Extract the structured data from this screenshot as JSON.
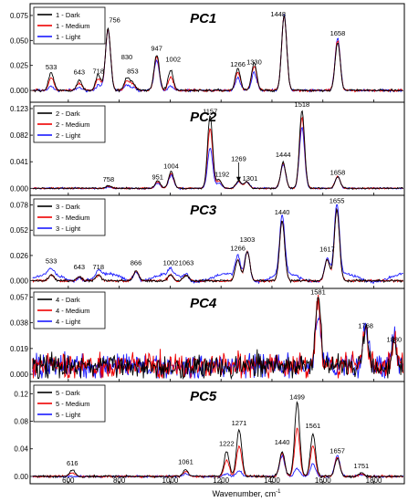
{
  "chart_data": {
    "type": "line",
    "xlabel": "Wavenumber, cm",
    "xlabel_sup": "-1",
    "xlim": [
      450,
      1920
    ],
    "xticks": [
      600,
      800,
      1000,
      1200,
      1400,
      1600,
      1800
    ],
    "series_colors": [
      "#000000",
      "#ee0000",
      "#1a1aff"
    ],
    "panels": [
      {
        "title": "PC1",
        "ylim": [
          -0.01,
          0.085
        ],
        "yticks": [
          "0.000",
          "0.025",
          "0.050",
          "0.075"
        ],
        "ytick_values": [
          0,
          0.025,
          0.05,
          0.075
        ],
        "legend": [
          "1 - Dark",
          "1 - Medium",
          "1 - Light"
        ],
        "peaks": [
          [
            533,
            0.018,
            0.004
          ],
          [
            643,
            0.01,
            0.003
          ],
          [
            718,
            0.016,
            0.005
          ],
          [
            756,
            0.062,
            0.06
          ],
          [
            830,
            0.012,
            0.005
          ],
          [
            853,
            0.008,
            0.003
          ],
          [
            947,
            0.036,
            0.03
          ],
          [
            1002,
            0.02,
            0.004
          ],
          [
            1266,
            0.022,
            0.013
          ],
          [
            1330,
            0.028,
            0.018
          ],
          [
            1448,
            0.075,
            0.075
          ],
          [
            1658,
            0.048,
            0.052
          ]
        ],
        "labels": [
          {
            "text": "533",
            "x": 533,
            "y": 0.021
          },
          {
            "text": "643",
            "x": 643,
            "y": 0.016
          },
          {
            "text": "718",
            "x": 718,
            "y": 0.017
          },
          {
            "text": "756",
            "x": 782,
            "y": 0.068
          },
          {
            "text": "830",
            "x": 830,
            "y": 0.031
          },
          {
            "text": "853",
            "x": 853,
            "y": 0.017
          },
          {
            "text": "947",
            "x": 947,
            "y": 0.04
          },
          {
            "text": "1002",
            "x": 1012,
            "y": 0.029
          },
          {
            "text": "1266",
            "x": 1266,
            "y": 0.024
          },
          {
            "text": "1330",
            "x": 1330,
            "y": 0.026
          },
          {
            "text": "1448",
            "x": 1424,
            "y": 0.074
          },
          {
            "text": "1658",
            "x": 1658,
            "y": 0.055
          }
        ]
      },
      {
        "title": "PC2",
        "ylim": [
          -0.008,
          0.13
        ],
        "yticks": [
          "0.000",
          "0.041",
          "0.082",
          "0.123"
        ],
        "ytick_values": [
          0,
          0.041,
          0.082,
          0.123
        ],
        "legend": [
          "2 - Dark",
          "2 - Medium",
          "2 - Light"
        ],
        "peaks": [
          [
            758,
            0.004,
            0.002
          ],
          [
            951,
            0.012,
            0.008
          ],
          [
            1004,
            0.026,
            0.02
          ],
          [
            1157,
            0.112,
            0.062
          ],
          [
            1192,
            0.014,
            0.008
          ],
          [
            1269,
            0.012,
            0.01
          ],
          [
            1301,
            0.01,
            0.01
          ],
          [
            1444,
            0.04,
            0.036
          ],
          [
            1518,
            0.12,
            0.094
          ],
          [
            1658,
            0.018,
            0.018
          ]
        ],
        "labels": [
          {
            "text": "758",
            "x": 758,
            "y": 0.01
          },
          {
            "text": "951",
            "x": 951,
            "y": 0.014
          },
          {
            "text": "1004",
            "x": 1004,
            "y": 0.031
          },
          {
            "text": "1157",
            "x": 1157,
            "y": 0.115
          },
          {
            "text": "1192",
            "x": 1204,
            "y": 0.018
          },
          {
            "text": "1269",
            "x": 1269,
            "y": 0.042
          },
          {
            "text": "1301",
            "x": 1314,
            "y": 0.012
          },
          {
            "text": "1444",
            "x": 1444,
            "y": 0.048
          },
          {
            "text": "1518",
            "x": 1518,
            "y": 0.126
          },
          {
            "text": "1658",
            "x": 1658,
            "y": 0.021
          }
        ]
      },
      {
        "title": "PC3",
        "ylim": [
          -0.006,
          0.086
        ],
        "yticks": [
          "0.000",
          "0.026",
          "0.052",
          "0.078"
        ],
        "ytick_values": [
          0,
          0.026,
          0.052,
          0.078
        ],
        "legend": [
          "3 - Dark",
          "3 - Medium",
          "3 - Light"
        ],
        "peaks": [
          [
            533,
            0.006,
            0.006
          ],
          [
            643,
            0.004,
            0.004
          ],
          [
            718,
            0.006,
            0.006
          ],
          [
            866,
            0.01,
            0.01
          ],
          [
            1002,
            0.006,
            0.006
          ],
          [
            1063,
            0.006,
            0.006
          ],
          [
            1266,
            0.022,
            0.022
          ],
          [
            1303,
            0.03,
            0.03
          ],
          [
            1440,
            0.062,
            0.062
          ],
          [
            1617,
            0.022,
            0.022
          ],
          [
            1655,
            0.074,
            0.074
          ]
        ],
        "labels": [
          {
            "text": "533",
            "x": 533,
            "y": 0.018
          },
          {
            "text": "643",
            "x": 643,
            "y": 0.012
          },
          {
            "text": "718",
            "x": 718,
            "y": 0.012
          },
          {
            "text": "866",
            "x": 866,
            "y": 0.016
          },
          {
            "text": "1002",
            "x": 1002,
            "y": 0.016
          },
          {
            "text": "1063",
            "x": 1063,
            "y": 0.016
          },
          {
            "text": "1266",
            "x": 1266,
            "y": 0.031
          },
          {
            "text": "1303",
            "x": 1303,
            "y": 0.04
          },
          {
            "text": "1440",
            "x": 1440,
            "y": 0.068
          },
          {
            "text": "1617",
            "x": 1617,
            "y": 0.03
          },
          {
            "text": "1655",
            "x": 1655,
            "y": 0.08
          }
        ]
      },
      {
        "title": "PC4",
        "ylim": [
          -0.004,
          0.062
        ],
        "yticks": [
          "0.000",
          "0.019",
          "0.038",
          "0.057"
        ],
        "ytick_values": [
          0,
          0.019,
          0.038,
          0.057
        ],
        "legend": [
          "4 - Dark",
          "4 - Medium",
          "4 - Light"
        ],
        "peaks": [
          [
            1581,
            0.052,
            0.038
          ],
          [
            1768,
            0.028,
            0.03
          ],
          [
            1880,
            0.018,
            0.02
          ]
        ],
        "labels": [
          {
            "text": "1581",
            "x": 1581,
            "y": 0.059
          },
          {
            "text": "1768",
            "x": 1768,
            "y": 0.034
          },
          {
            "text": "1880",
            "x": 1880,
            "y": 0.024
          }
        ]
      },
      {
        "title": "PC5",
        "ylim": [
          -0.008,
          0.135
        ],
        "yticks": [
          "0.00",
          "0.04",
          "0.08",
          "0.12"
        ],
        "ytick_values": [
          0,
          0.04,
          0.08,
          0.12
        ],
        "legend": [
          "5 - Dark",
          "5 - Medium",
          "5 - Light"
        ],
        "peaks": [
          [
            616,
            0.01,
            0.0
          ],
          [
            1061,
            0.01,
            0.004
          ],
          [
            1222,
            0.036,
            0.004
          ],
          [
            1271,
            0.068,
            0.008
          ],
          [
            1440,
            0.036,
            0.03
          ],
          [
            1499,
            0.108,
            0.012
          ],
          [
            1561,
            0.062,
            0.018
          ],
          [
            1657,
            0.026,
            0.03
          ],
          [
            1751,
            0.005,
            0.003
          ]
        ],
        "labels": [
          {
            "text": "616",
            "x": 616,
            "y": 0.016
          },
          {
            "text": "1061",
            "x": 1061,
            "y": 0.018
          },
          {
            "text": "1222",
            "x": 1222,
            "y": 0.044
          },
          {
            "text": "1271",
            "x": 1271,
            "y": 0.074
          },
          {
            "text": "1440",
            "x": 1440,
            "y": 0.046
          },
          {
            "text": "1499",
            "x": 1499,
            "y": 0.112
          },
          {
            "text": "1561",
            "x": 1561,
            "y": 0.07
          },
          {
            "text": "1657",
            "x": 1657,
            "y": 0.034
          },
          {
            "text": "1751",
            "x": 1751,
            "y": 0.012
          }
        ]
      }
    ]
  }
}
